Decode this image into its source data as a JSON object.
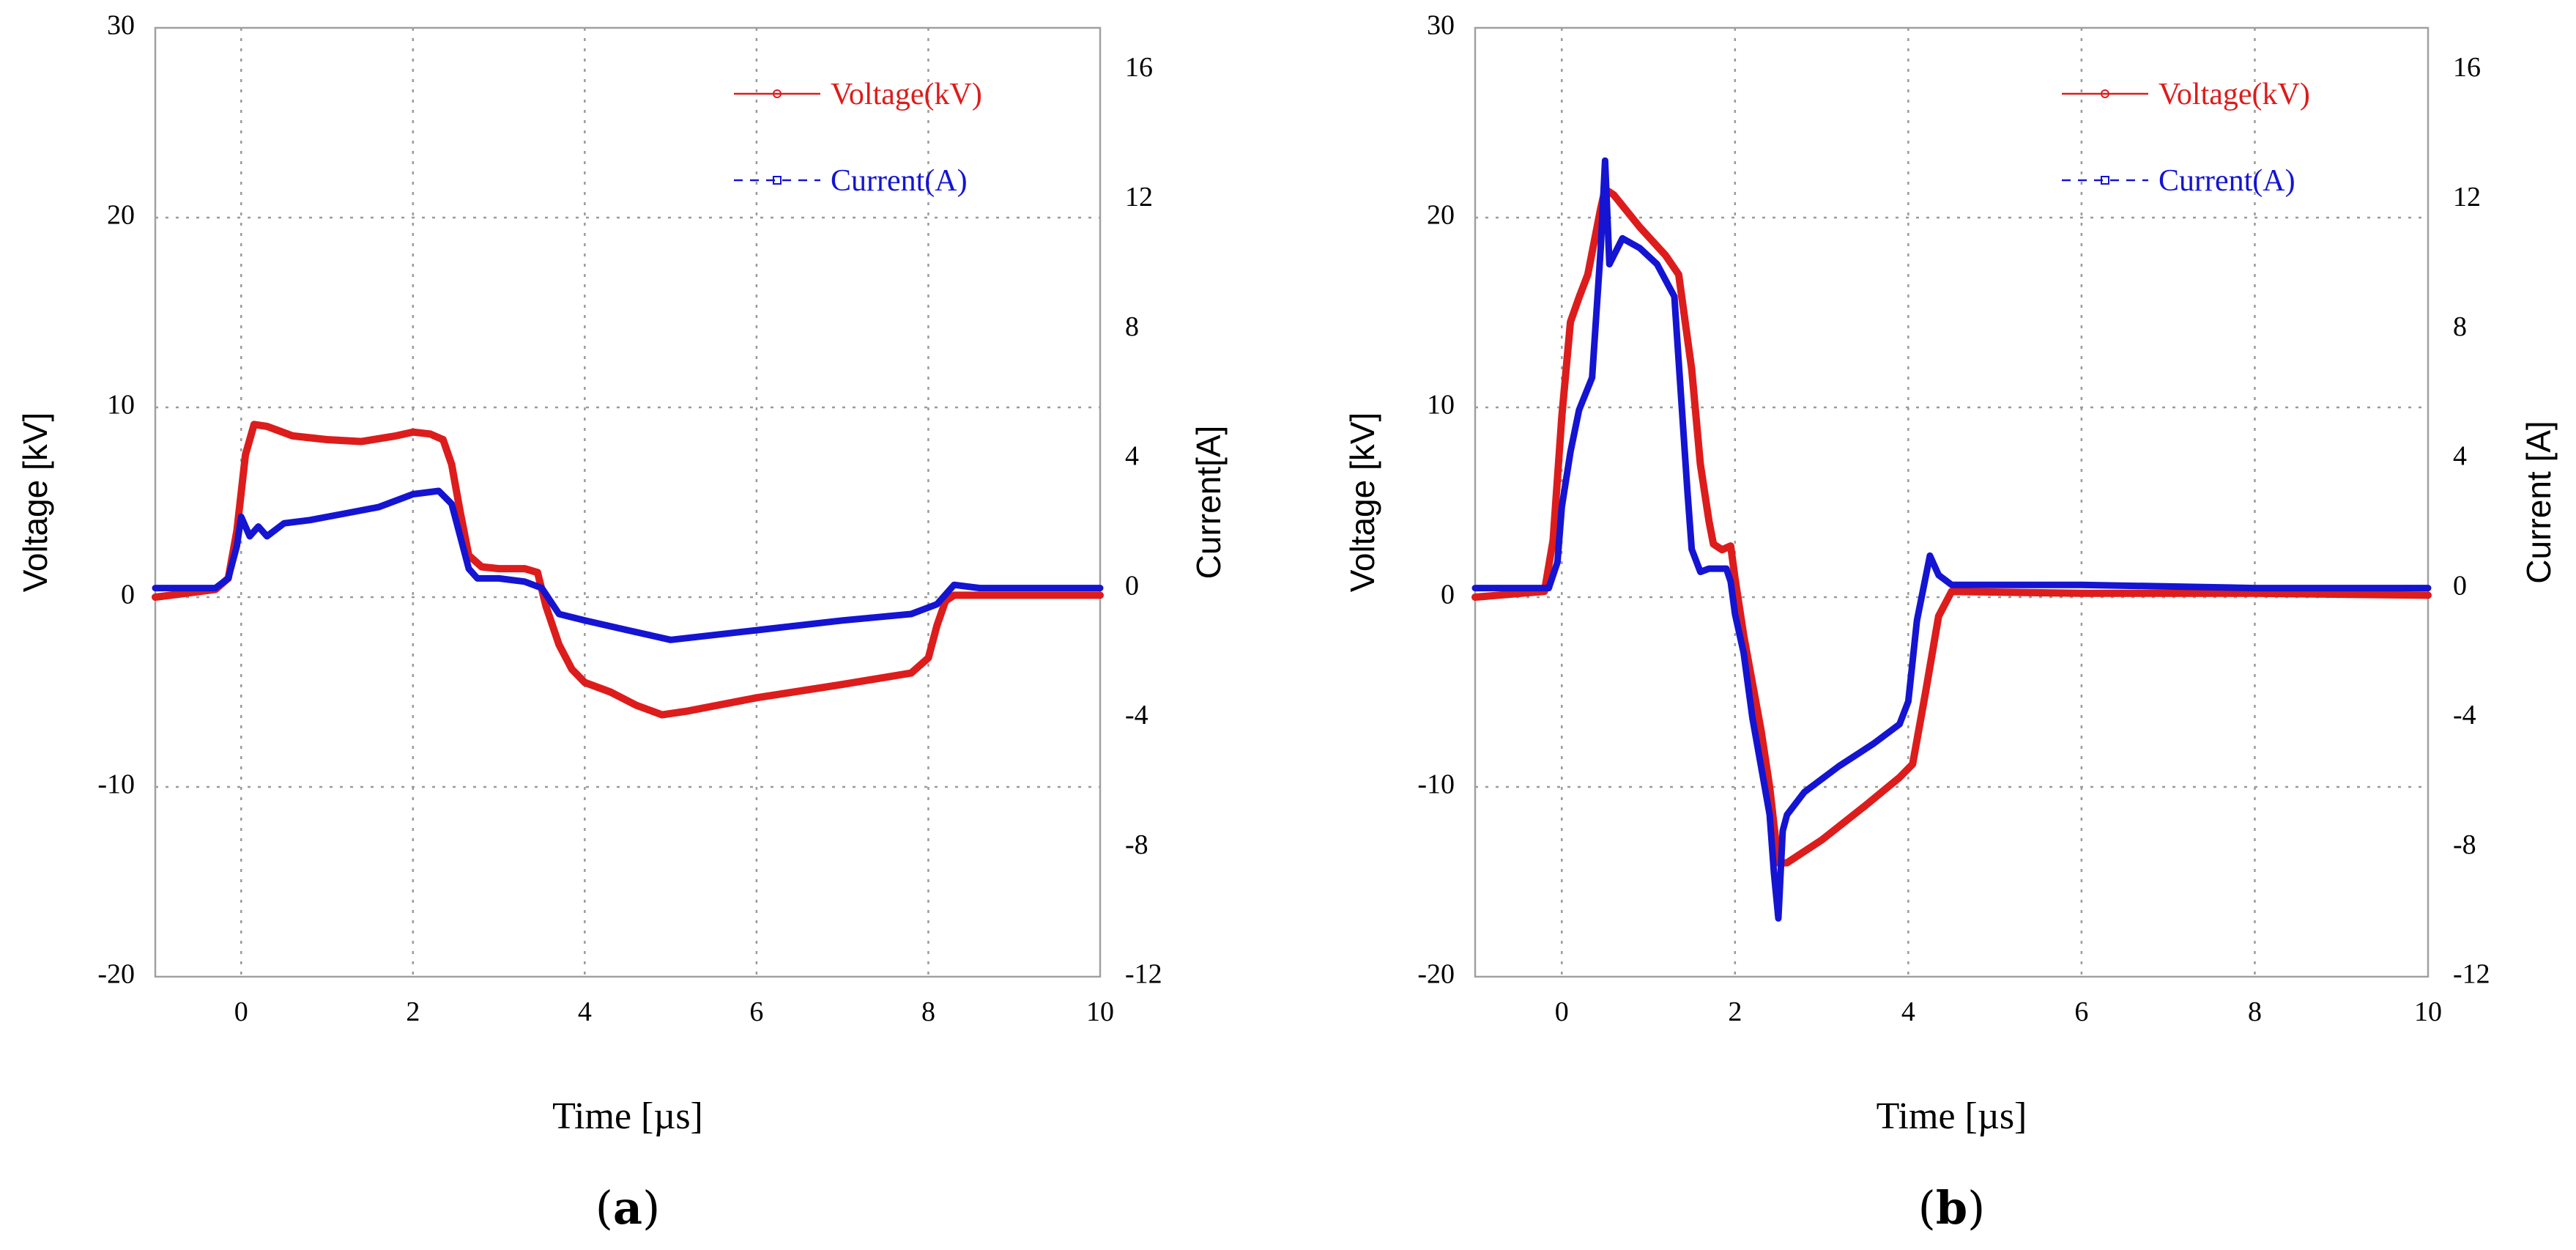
{
  "chart_data": [
    {
      "type": "line",
      "panel_label": "a",
      "xlabel": "Time [µs]",
      "ylabel_left": "Voltage [kV]",
      "ylabel_right": "Current[A]",
      "xlim": [
        -1,
        10
      ],
      "ylim_left": [
        -20,
        30
      ],
      "ylim_right": [
        -12,
        17.3
      ],
      "x_ticks": [
        "0",
        "2",
        "4",
        "6",
        "8",
        "10"
      ],
      "y_ticks_left": [
        "30",
        "20",
        "10",
        "0",
        "-10",
        "-20"
      ],
      "y_ticks_right": [
        "16",
        "12",
        "8",
        "4",
        "0",
        "-4",
        "-8",
        "-12"
      ],
      "grid": true,
      "legend_position": "top-right",
      "series": [
        {
          "name": "Voltage(kV)",
          "axis": "left",
          "color": "#dd1c1c",
          "x": [
            -1,
            -0.3,
            -0.15,
            -0.05,
            0.05,
            0.15,
            0.3,
            0.6,
            1.0,
            1.4,
            1.8,
            2.0,
            2.2,
            2.35,
            2.45,
            2.55,
            2.65,
            2.8,
            3.0,
            3.3,
            3.45,
            3.55,
            3.7,
            3.85,
            4.0,
            4.3,
            4.6,
            4.9,
            5.2,
            6.0,
            7.0,
            7.8,
            8.0,
            8.1,
            8.2,
            8.3,
            9.0,
            10
          ],
          "y": [
            0.0,
            0.4,
            1.0,
            3.5,
            7.5,
            9.1,
            9.0,
            8.5,
            8.3,
            8.2,
            8.5,
            8.7,
            8.6,
            8.3,
            7.0,
            4.5,
            2.2,
            1.6,
            1.5,
            1.5,
            1.3,
            -0.5,
            -2.5,
            -3.8,
            -4.5,
            -5.0,
            -5.7,
            -6.2,
            -6.0,
            -5.3,
            -4.6,
            -4.0,
            -3.2,
            -1.5,
            -0.2,
            0.1,
            0.1,
            0.1
          ]
        },
        {
          "name": "Current(A)",
          "axis": "right",
          "color": "#1414d2",
          "x": [
            -1,
            -0.3,
            -0.15,
            -0.1,
            -0.05,
            0.0,
            0.1,
            0.2,
            0.3,
            0.5,
            0.8,
            1.2,
            1.6,
            2.0,
            2.3,
            2.45,
            2.55,
            2.65,
            2.75,
            3.0,
            3.3,
            3.5,
            3.7,
            4.0,
            4.5,
            5.0,
            6.0,
            7.0,
            7.8,
            8.1,
            8.3,
            8.6,
            9.0,
            10
          ],
          "y": [
            0.0,
            0.0,
            0.3,
            0.8,
            1.3,
            2.2,
            1.6,
            1.9,
            1.6,
            2.0,
            2.1,
            2.3,
            2.5,
            2.9,
            3.0,
            2.6,
            1.6,
            0.6,
            0.3,
            0.3,
            0.2,
            0.0,
            -0.8,
            -1.0,
            -1.3,
            -1.6,
            -1.3,
            -1.0,
            -0.8,
            -0.5,
            0.1,
            0.0,
            0.0,
            0.0
          ]
        }
      ]
    },
    {
      "type": "line",
      "panel_label": "b",
      "xlabel": "Time [µs]",
      "ylabel_left": "Voltage [kV]",
      "ylabel_right": "Current [A]",
      "xlim": [
        -1,
        10
      ],
      "ylim_left": [
        -20,
        30
      ],
      "ylim_right": [
        -12,
        17.3
      ],
      "x_ticks": [
        "0",
        "2",
        "4",
        "6",
        "8",
        "10"
      ],
      "y_ticks_left": [
        "30",
        "20",
        "10",
        "0",
        "-10",
        "-20"
      ],
      "y_ticks_right": [
        "16",
        "12",
        "8",
        "4",
        "0",
        "-4",
        "-8",
        "-12"
      ],
      "grid": true,
      "legend_position": "top-right",
      "series": [
        {
          "name": "Voltage(kV)",
          "axis": "left",
          "color": "#dd1c1c",
          "x": [
            -1,
            -0.2,
            -0.1,
            0.0,
            0.1,
            0.2,
            0.3,
            0.45,
            0.5,
            0.6,
            0.9,
            1.2,
            1.35,
            1.5,
            1.6,
            1.7,
            1.75,
            1.85,
            1.95,
            2.0,
            2.1,
            2.3,
            2.4,
            2.45,
            2.5,
            2.6,
            3.0,
            3.5,
            3.9,
            4.05,
            4.2,
            4.35,
            4.5,
            6.0,
            8.0,
            10
          ],
          "y": [
            0.0,
            0.3,
            3.0,
            9.5,
            14.5,
            15.8,
            17.0,
            20.5,
            21.5,
            21.2,
            19.5,
            18.0,
            17.0,
            12.0,
            7.0,
            4.0,
            2.8,
            2.5,
            2.7,
            1.0,
            -2.0,
            -7.0,
            -10.0,
            -12.0,
            -14.0,
            -14.0,
            -12.8,
            -11.0,
            -9.5,
            -8.8,
            -5.0,
            -1.0,
            0.3,
            0.2,
            0.2,
            0.1
          ]
        },
        {
          "name": "Current(A)",
          "axis": "right",
          "color": "#1414d2",
          "x": [
            -1,
            -0.15,
            -0.05,
            0.0,
            0.1,
            0.2,
            0.35,
            0.45,
            0.5,
            0.55,
            0.7,
            0.9,
            1.1,
            1.3,
            1.35,
            1.45,
            1.5,
            1.6,
            1.7,
            1.9,
            1.95,
            2.0,
            2.1,
            2.2,
            2.3,
            2.4,
            2.45,
            2.5,
            2.55,
            2.6,
            2.8,
            3.2,
            3.6,
            3.9,
            4.0,
            4.1,
            4.25,
            4.35,
            4.5,
            5.0,
            6.0,
            8.0,
            10
          ],
          "y": [
            0.0,
            0.0,
            0.8,
            2.5,
            4.2,
            5.5,
            6.5,
            10.5,
            13.2,
            10.0,
            10.8,
            10.5,
            10.0,
            9.0,
            7.0,
            3.0,
            1.2,
            0.5,
            0.6,
            0.6,
            0.2,
            -0.8,
            -2.0,
            -4.0,
            -5.5,
            -7.0,
            -8.8,
            -10.2,
            -7.5,
            -7.0,
            -6.3,
            -5.5,
            -4.8,
            -4.2,
            -3.5,
            -1.0,
            1.0,
            0.4,
            0.1,
            0.1,
            0.1,
            0.0,
            0.0
          ]
        }
      ]
    }
  ]
}
